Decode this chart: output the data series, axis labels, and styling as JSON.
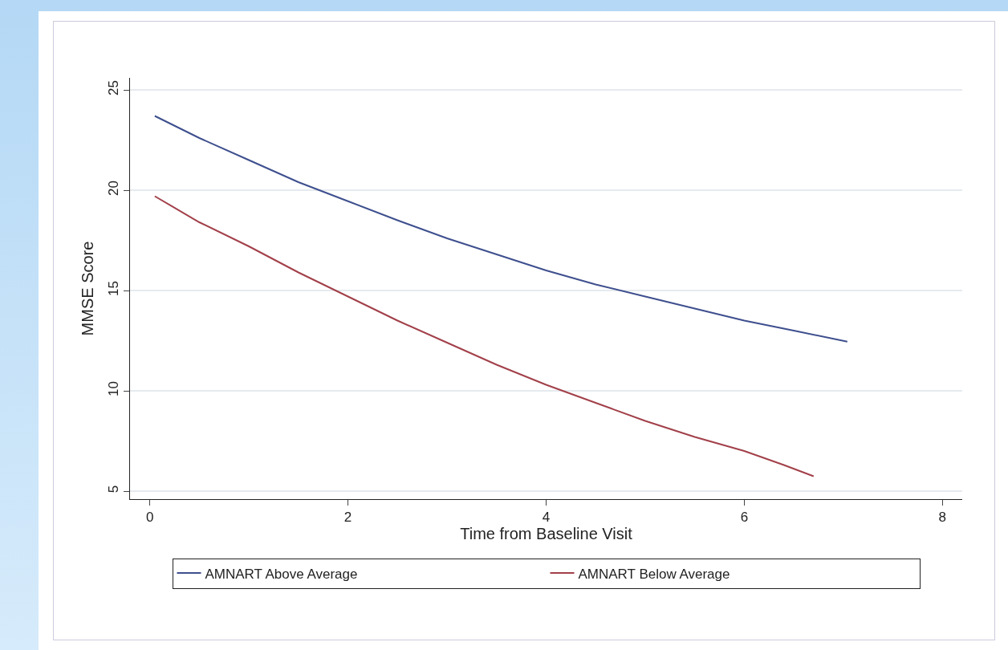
{
  "chart_data": {
    "type": "line",
    "xlabel": "Time from Baseline Visit",
    "ylabel": "MMSE Score",
    "series": [
      {
        "name": "AMNART Above Average",
        "color": "#3e4f8e",
        "x": [
          0.05,
          0.5,
          1,
          1.5,
          2,
          2.5,
          3,
          3.5,
          4,
          4.5,
          5,
          5.5,
          6,
          6.5,
          7.04
        ],
        "values": [
          23.7,
          22.6,
          21.5,
          20.4,
          19.45,
          18.5,
          17.6,
          16.8,
          16.0,
          15.3,
          14.7,
          14.1,
          13.5,
          13.0,
          12.45
        ]
      },
      {
        "name": "AMNART Below Average",
        "color": "#a2404a",
        "x": [
          0.05,
          0.5,
          1,
          1.5,
          2,
          2.5,
          3,
          3.5,
          4,
          4.5,
          5,
          5.5,
          6,
          6.4,
          6.7
        ],
        "values": [
          19.7,
          18.4,
          17.2,
          15.9,
          14.7,
          13.5,
          12.4,
          11.3,
          10.3,
          9.4,
          8.5,
          7.7,
          7.0,
          6.3,
          5.74
        ]
      }
    ],
    "xlim": [
      -0.2,
      8.2
    ],
    "xticks": [
      0,
      2,
      4,
      6,
      8
    ],
    "ylim": [
      4.6,
      25.6
    ],
    "yticks": [
      5,
      10,
      15,
      20,
      25
    ],
    "grid": "y",
    "legend": "bottom",
    "line_style": "solid",
    "marker": "none"
  }
}
